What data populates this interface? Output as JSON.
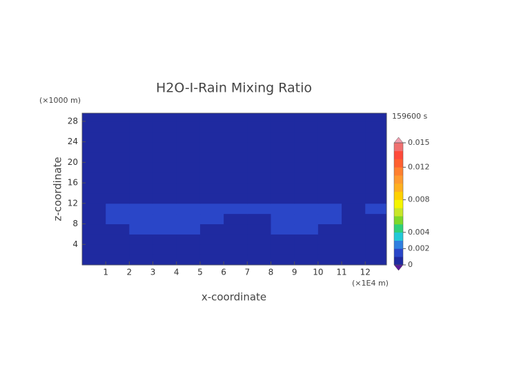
{
  "chart_data": {
    "type": "heatmap",
    "title": "H2O-I-Rain Mixing Ratio",
    "x_label": "x-coordinate",
    "y_label": "z-coordinate",
    "x_unit": "(×1E4 m)",
    "y_unit": "(×1000 m)",
    "time_label": "159600 s",
    "x_edges": [
      0,
      1,
      2,
      3,
      4,
      5,
      6,
      7,
      8,
      9,
      10,
      11,
      12,
      12.9
    ],
    "y_edges": [
      0,
      2,
      4,
      6,
      8,
      10,
      12,
      14,
      16,
      18,
      20,
      22,
      24,
      26,
      28,
      29.6
    ],
    "values": [
      [
        0.0003,
        0.0003,
        0.0003,
        0.0003,
        0.0003,
        0.0003,
        0.0003,
        0.0003,
        0.0003,
        0.0003,
        0.0003,
        0.0003,
        0.0003
      ],
      [
        0.0003,
        0.0003,
        0.0003,
        0.0003,
        0.0003,
        0.0003,
        0.0003,
        0.0003,
        0.0003,
        0.0003,
        0.0003,
        0.0003,
        0.0003
      ],
      [
        0.0003,
        0.0003,
        0.0003,
        0.0003,
        0.0003,
        0.0003,
        0.0003,
        0.0003,
        0.0003,
        0.0003,
        0.0003,
        0.0003,
        0.0003
      ],
      [
        0.0003,
        0.0003,
        0.0012,
        0.0012,
        0.0012,
        0.0003,
        0.0003,
        0.0003,
        0.0012,
        0.0012,
        0.0003,
        0.0003,
        0.0003
      ],
      [
        0.0003,
        0.0012,
        0.0012,
        0.0012,
        0.0012,
        0.0012,
        0.0003,
        0.0003,
        0.0012,
        0.0012,
        0.0012,
        0.0003,
        0.0003
      ],
      [
        0.0003,
        0.0012,
        0.0012,
        0.0012,
        0.0012,
        0.0012,
        0.0012,
        0.0012,
        0.0012,
        0.0012,
        0.0012,
        0.0003,
        0.0012
      ],
      [
        0.0003,
        0.0003,
        0.0003,
        0.0003,
        0.0003,
        0.0003,
        0.0003,
        0.0003,
        0.0003,
        0.0003,
        0.0003,
        0.0003,
        0.0003
      ],
      [
        0.0003,
        0.0003,
        0.0003,
        0.0003,
        0.0003,
        0.0003,
        0.0003,
        0.0003,
        0.0003,
        0.0003,
        0.0003,
        0.0003,
        0.0003
      ],
      [
        0.0003,
        0.0003,
        0.0003,
        0.0003,
        0.0003,
        0.0003,
        0.0003,
        0.0003,
        0.0003,
        0.0003,
        0.0003,
        0.0003,
        0.0003
      ],
      [
        0.0003,
        0.0003,
        0.0003,
        0.0003,
        0.0003,
        0.0003,
        0.0003,
        0.0003,
        0.0003,
        0.0003,
        0.0003,
        0.0003,
        0.0003
      ],
      [
        0.0003,
        0.0003,
        0.0003,
        0.0003,
        0.0003,
        0.0003,
        0.0003,
        0.0003,
        0.0003,
        0.0003,
        0.0003,
        0.0003,
        0.0003
      ],
      [
        0.0003,
        0.0003,
        0.0003,
        0.0003,
        0.0003,
        0.0003,
        0.0003,
        0.0003,
        0.0003,
        0.0003,
        0.0003,
        0.0003,
        0.0003
      ],
      [
        0.0003,
        0.0003,
        0.0003,
        0.0003,
        0.0003,
        0.0003,
        0.0003,
        0.0003,
        0.0003,
        0.0003,
        0.0003,
        0.0003,
        0.0003
      ],
      [
        0.0003,
        0.0003,
        0.0003,
        0.0003,
        0.0003,
        0.0003,
        0.0003,
        0.0003,
        0.0003,
        0.0003,
        0.0003,
        0.0003,
        0.0003
      ],
      [
        0.0003,
        0.0003,
        0.0003,
        0.0003,
        0.0003,
        0.0003,
        0.0003,
        0.0003,
        0.0003,
        0.0003,
        0.0003,
        0.0003,
        0.0003
      ]
    ],
    "xlim": [
      0,
      12.9
    ],
    "ylim": [
      0,
      29.6
    ],
    "xticks": [
      1,
      2,
      3,
      4,
      5,
      6,
      7,
      8,
      9,
      10,
      11,
      12
    ],
    "yticks": [
      4,
      8,
      12,
      16,
      20,
      24,
      28
    ],
    "grid": false,
    "colorbar": {
      "levels": [
        0,
        0.001,
        0.002,
        0.003,
        0.004,
        0.005,
        0.006,
        0.007,
        0.008,
        0.009,
        0.01,
        0.011,
        0.012,
        0.013,
        0.014,
        0.015
      ],
      "colors": [
        "#1f2aa0",
        "#2a46c8",
        "#2f7fe0",
        "#22c8d8",
        "#2fd07a",
        "#7ed82a",
        "#c8e628",
        "#f5f500",
        "#ffd000",
        "#ffb020",
        "#ff9a30",
        "#ff8030",
        "#ff6030",
        "#ff4a3a",
        "#f07070"
      ],
      "under_color": "#5a1a9a",
      "over_color": "#f0a0b0",
      "lim": [
        0,
        0.015
      ],
      "ticks": [
        0,
        0.002,
        0.004,
        0.008,
        0.012,
        0.015
      ]
    }
  }
}
